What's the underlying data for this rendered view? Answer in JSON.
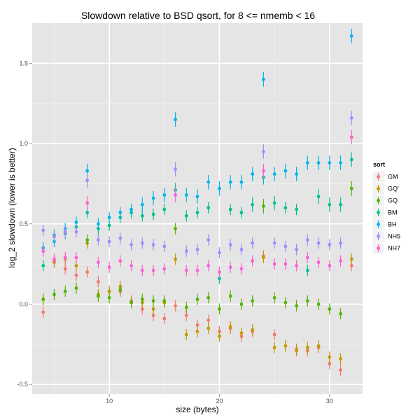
{
  "chart_data": {
    "type": "scatter",
    "title": "Slowdown relative to BSD qsort, for 8 <= nmemb < 16",
    "xlabel": "size (bytes)",
    "ylabel": "log_2 slowdown (lower is better)",
    "xlim": [
      3,
      33
    ],
    "ylim": [
      -0.56,
      1.75
    ],
    "x_ticks": [
      10,
      20,
      30
    ],
    "y_ticks": [
      -0.5,
      0.0,
      0.5,
      1.0,
      1.5
    ],
    "y_tick_labels": [
      "-0.5",
      "0.0",
      "0.5",
      "1.0",
      "1.5"
    ],
    "x_tick_labels": [
      "10",
      "20",
      "30"
    ],
    "grid": true,
    "background": "#e5e5e5",
    "error_bars": true,
    "legend": {
      "title": "sort",
      "position": "right"
    },
    "x": [
      4,
      5,
      6,
      7,
      8,
      9,
      10,
      11,
      12,
      13,
      14,
      15,
      16,
      17,
      18,
      19,
      20,
      21,
      22,
      23,
      24,
      25,
      26,
      27,
      28,
      29,
      30,
      31,
      32
    ],
    "series": [
      {
        "name": "GM",
        "color": "#F8766D",
        "values": [
          -0.05,
          0.27,
          0.22,
          0.18,
          0.2,
          0.14,
          0.08,
          0.08,
          0.02,
          -0.03,
          -0.07,
          -0.09,
          -0.01,
          -0.07,
          -0.13,
          -0.1,
          -0.17,
          -0.15,
          -0.2,
          -0.17,
          0.3,
          -0.19,
          -0.26,
          -0.28,
          -0.29,
          -0.27,
          -0.37,
          -0.41,
          0.24
        ]
      },
      {
        "name": "GQ'",
        "color": "#C49A00",
        "values": [
          0.03,
          0.26,
          0.28,
          0.24,
          0.38,
          0.06,
          0.08,
          0.11,
          0.01,
          0.01,
          -0.03,
          0.01,
          0.28,
          -0.19,
          -0.17,
          -0.15,
          -0.2,
          -0.14,
          -0.18,
          -0.16,
          0.29,
          -0.27,
          -0.26,
          -0.29,
          -0.27,
          -0.26,
          -0.33,
          -0.34,
          0.28
        ]
      },
      {
        "name": "GQ",
        "color": "#53B400",
        "values": [
          0.03,
          0.06,
          0.08,
          0.1,
          0.4,
          0.05,
          0.04,
          0.09,
          0.01,
          0.03,
          0.02,
          0.02,
          0.47,
          -0.02,
          0.03,
          0.04,
          -0.03,
          0.05,
          0.0,
          0.02,
          0.61,
          0.04,
          0.01,
          -0.01,
          0.02,
          0.0,
          -0.03,
          -0.06,
          0.72
        ]
      },
      {
        "name": "BM",
        "color": "#00C094",
        "values": [
          0.24,
          0.43,
          0.44,
          0.48,
          0.57,
          0.47,
          0.49,
          0.54,
          0.57,
          0.55,
          0.56,
          0.59,
          0.71,
          0.55,
          0.57,
          0.6,
          0.16,
          0.59,
          0.57,
          0.62,
          0.79,
          0.63,
          0.6,
          0.59,
          0.21,
          0.67,
          0.62,
          0.62,
          0.9
        ]
      },
      {
        "name": "BH",
        "color": "#00B6EB",
        "values": [
          0.35,
          0.39,
          0.47,
          0.51,
          0.83,
          0.5,
          0.54,
          0.57,
          0.59,
          0.62,
          0.66,
          0.68,
          1.15,
          0.68,
          0.67,
          0.76,
          0.72,
          0.76,
          0.76,
          0.81,
          1.4,
          0.81,
          0.83,
          0.81,
          0.88,
          0.88,
          0.88,
          0.88,
          1.67
        ]
      },
      {
        "name": "NH5",
        "color": "#A58AFF",
        "values": [
          0.46,
          0.42,
          0.45,
          0.45,
          0.77,
          0.4,
          0.39,
          0.41,
          0.37,
          0.38,
          0.37,
          0.36,
          0.84,
          0.33,
          0.34,
          0.4,
          0.32,
          0.37,
          0.34,
          0.38,
          0.95,
          0.38,
          0.36,
          0.34,
          0.4,
          0.38,
          0.37,
          0.38,
          1.16
        ]
      },
      {
        "name": "NH7",
        "color": "#FB61D7",
        "values": [
          0.33,
          0.28,
          0.29,
          0.29,
          0.63,
          0.26,
          0.23,
          0.27,
          0.24,
          0.21,
          0.21,
          0.22,
          0.68,
          0.21,
          0.21,
          0.24,
          0.2,
          0.23,
          0.22,
          0.27,
          0.83,
          0.25,
          0.25,
          0.24,
          0.29,
          0.26,
          0.24,
          0.27,
          1.04
        ]
      }
    ]
  }
}
